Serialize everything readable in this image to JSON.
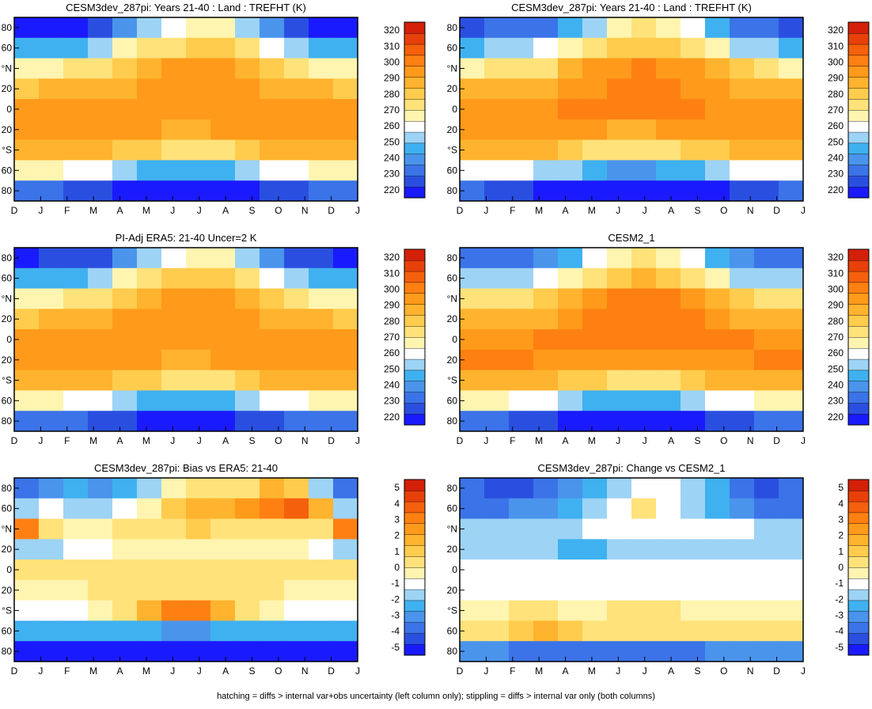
{
  "months": [
    "D",
    "J",
    "F",
    "M",
    "A",
    "M",
    "J",
    "J",
    "A",
    "S",
    "O",
    "N",
    "D",
    "J"
  ],
  "lat_labels": [
    "80",
    "60",
    "°N",
    "20",
    "0",
    "20",
    "°S",
    "60",
    "80"
  ],
  "footnote": "hatching = diffs > internal var+obs uncertainty (left column only); stippling = diffs > internal var only (both columns)",
  "chart_data": [
    {
      "type": "heatmap",
      "title": "CESM3dev_287pi: Years 21-40 : Land : TREFHT (K)",
      "x": [
        "D",
        "J",
        "F",
        "M",
        "A",
        "M",
        "J",
        "J",
        "A",
        "S",
        "O",
        "N",
        "D",
        "J"
      ],
      "y": [
        "80",
        "60",
        "°N",
        "20",
        "0",
        "20",
        "°S",
        "60",
        "80"
      ],
      "z_rows": [
        [
          224,
          225,
          226,
          230,
          240,
          252,
          262,
          268,
          266,
          255,
          240,
          230,
          226,
          224
        ],
        [
          246,
          248,
          250,
          256,
          264,
          270,
          276,
          280,
          278,
          270,
          262,
          254,
          248,
          246
        ],
        [
          266,
          268,
          270,
          274,
          280,
          286,
          290,
          292,
          290,
          286,
          280,
          274,
          268,
          266
        ],
        [
          282,
          283,
          284,
          286,
          288,
          291,
          293,
          294,
          293,
          291,
          288,
          285,
          283,
          282
        ],
        [
          292,
          292,
          292,
          293,
          294,
          294,
          294,
          294,
          294,
          294,
          293,
          293,
          292,
          292
        ],
        [
          294,
          294,
          294,
          293,
          292,
          290,
          288,
          288,
          289,
          291,
          292,
          293,
          294,
          294
        ],
        [
          288,
          288,
          287,
          285,
          282,
          278,
          274,
          274,
          276,
          280,
          284,
          287,
          288,
          288
        ],
        [
          264,
          264,
          262,
          258,
          254,
          250,
          246,
          246,
          248,
          252,
          258,
          262,
          264,
          264
        ],
        [
          236,
          234,
          232,
          228,
          225,
          223,
          222,
          222,
          223,
          225,
          228,
          232,
          234,
          236
        ]
      ],
      "colorbar": {
        "levels": [
          220,
          230,
          240,
          250,
          260,
          270,
          280,
          290,
          300,
          310,
          320
        ],
        "labels": [
          "220",
          "230",
          "240",
          "250",
          "260",
          "270",
          "280",
          "290",
          "300",
          "310",
          "320"
        ]
      }
    },
    {
      "type": "heatmap",
      "title": "CESM3dev_287pi: Years 21-40 : Land : TREFHT (K)",
      "x": [
        "D",
        "J",
        "F",
        "M",
        "A",
        "M",
        "J",
        "J",
        "A",
        "S",
        "O",
        "N",
        "D",
        "J"
      ],
      "y": [
        "80",
        "60",
        "°N",
        "20",
        "0",
        "20",
        "°S",
        "60",
        "80"
      ],
      "z_rows": [
        [
          232,
          233,
          234,
          238,
          246,
          256,
          266,
          270,
          268,
          258,
          246,
          238,
          234,
          232
        ],
        [
          250,
          252,
          254,
          258,
          266,
          272,
          278,
          282,
          280,
          272,
          264,
          256,
          252,
          250
        ],
        [
          268,
          270,
          272,
          276,
          284,
          290,
          294,
          296,
          294,
          290,
          284,
          278,
          272,
          268
        ],
        [
          284,
          284,
          285,
          287,
          290,
          294,
          296,
          297,
          296,
          294,
          290,
          287,
          285,
          284
        ],
        [
          293,
          293,
          293,
          294,
          295,
          295,
          295,
          295,
          295,
          295,
          294,
          294,
          293,
          293
        ],
        [
          294,
          294,
          294,
          293,
          292,
          290,
          288,
          288,
          289,
          291,
          292,
          293,
          294,
          294
        ],
        [
          286,
          286,
          285,
          283,
          280,
          276,
          272,
          272,
          274,
          278,
          282,
          285,
          286,
          286
        ],
        [
          262,
          262,
          260,
          256,
          252,
          248,
          244,
          244,
          246,
          250,
          256,
          260,
          262,
          262
        ],
        [
          234,
          232,
          230,
          226,
          223,
          221,
          220,
          220,
          221,
          223,
          226,
          230,
          232,
          234
        ]
      ],
      "colorbar": {
        "levels": [
          220,
          230,
          240,
          250,
          260,
          270,
          280,
          290,
          300,
          310,
          320
        ],
        "labels": [
          "220",
          "230",
          "240",
          "250",
          "260",
          "270",
          "280",
          "290",
          "300",
          "310",
          "320"
        ]
      }
    },
    {
      "type": "heatmap",
      "title": "PI-Adj ERA5: 21-40 Uncer=2 K",
      "x": [
        "D",
        "J",
        "F",
        "M",
        "A",
        "M",
        "J",
        "J",
        "A",
        "S",
        "O",
        "N",
        "D",
        "J"
      ],
      "y": [
        "80",
        "60",
        "°N",
        "20",
        "0",
        "20",
        "°S",
        "60",
        "80"
      ],
      "z_rows": [
        [
          226,
          227,
          228,
          232,
          242,
          253,
          263,
          268,
          266,
          256,
          242,
          232,
          228,
          226
        ],
        [
          247,
          249,
          251,
          257,
          265,
          271,
          277,
          280,
          278,
          270,
          262,
          254,
          249,
          247
        ],
        [
          266,
          268,
          270,
          275,
          281,
          287,
          291,
          293,
          291,
          287,
          281,
          275,
          269,
          266
        ],
        [
          282,
          283,
          284,
          286,
          289,
          292,
          294,
          294,
          293,
          291,
          288,
          285,
          283,
          282
        ],
        [
          292,
          292,
          292,
          293,
          294,
          294,
          294,
          294,
          294,
          294,
          293,
          293,
          292,
          292
        ],
        [
          294,
          294,
          294,
          293,
          292,
          290,
          288,
          288,
          289,
          291,
          292,
          293,
          294,
          294
        ],
        [
          288,
          288,
          287,
          285,
          282,
          278,
          274,
          274,
          276,
          280,
          284,
          287,
          288,
          288
        ],
        [
          265,
          265,
          263,
          259,
          255,
          251,
          248,
          248,
          250,
          254,
          259,
          263,
          265,
          265
        ],
        [
          238,
          236,
          234,
          230,
          227,
          225,
          224,
          224,
          225,
          227,
          230,
          234,
          236,
          238
        ]
      ],
      "colorbar": {
        "levels": [
          220,
          230,
          240,
          250,
          260,
          270,
          280,
          290,
          300,
          310,
          320
        ],
        "labels": [
          "220",
          "230",
          "240",
          "250",
          "260",
          "270",
          "280",
          "290",
          "300",
          "310",
          "320"
        ]
      }
    },
    {
      "type": "heatmap",
      "title": "CESM2_1",
      "x": [
        "D",
        "J",
        "F",
        "M",
        "A",
        "M",
        "J",
        "J",
        "A",
        "S",
        "O",
        "N",
        "D",
        "J"
      ],
      "y": [
        "80",
        "60",
        "°N",
        "20",
        "0",
        "20",
        "°S",
        "60",
        "80"
      ],
      "z_rows": [
        [
          236,
          237,
          238,
          241,
          249,
          258,
          267,
          271,
          269,
          260,
          249,
          241,
          237,
          236
        ],
        [
          252,
          254,
          256,
          260,
          267,
          273,
          279,
          283,
          281,
          273,
          265,
          257,
          253,
          252
        ],
        [
          270,
          272,
          274,
          277,
          285,
          291,
          295,
          297,
          295,
          291,
          285,
          279,
          273,
          270
        ],
        [
          285,
          285,
          286,
          288,
          291,
          295,
          297,
          298,
          297,
          295,
          291,
          288,
          286,
          285
        ],
        [
          294,
          294,
          294,
          295,
          296,
          296,
          296,
          296,
          296,
          296,
          295,
          295,
          294,
          294
        ],
        [
          295,
          295,
          295,
          294,
          293,
          291,
          289,
          289,
          290,
          292,
          293,
          294,
          295,
          295
        ],
        [
          287,
          287,
          286,
          284,
          281,
          277,
          273,
          273,
          275,
          279,
          283,
          286,
          287,
          287
        ],
        [
          264,
          264,
          262,
          258,
          254,
          250,
          246,
          246,
          248,
          252,
          258,
          262,
          264,
          264
        ],
        [
          236,
          234,
          232,
          228,
          225,
          223,
          222,
          222,
          223,
          225,
          228,
          232,
          234,
          236
        ]
      ],
      "colorbar": {
        "levels": [
          220,
          230,
          240,
          250,
          260,
          270,
          280,
          290,
          300,
          310,
          320
        ],
        "labels": [
          "220",
          "230",
          "240",
          "250",
          "260",
          "270",
          "280",
          "290",
          "300",
          "310",
          "320"
        ]
      }
    },
    {
      "type": "heatmap",
      "title": "CESM3dev_287pi: Bias vs ERA5: 21-40",
      "x": [
        "D",
        "J",
        "F",
        "M",
        "A",
        "M",
        "J",
        "J",
        "A",
        "S",
        "O",
        "N",
        "D",
        "J"
      ],
      "y": [
        "80",
        "60",
        "°N",
        "20",
        "0",
        "20",
        "°S",
        "60",
        "80"
      ],
      "z_rows": [
        [
          -3.5,
          -3.0,
          -2.5,
          -3.0,
          -2.5,
          -1.5,
          -0.5,
          0.5,
          0.5,
          0.0,
          1.5,
          1.0,
          -1.5,
          -3.5
        ],
        [
          -1.5,
          -1.0,
          -1.5,
          -1.5,
          -1.0,
          -0.5,
          0.8,
          1.5,
          1.8,
          2.0,
          2.5,
          3.5,
          1.5,
          -1.5
        ],
        [
          2.5,
          0.5,
          -0.5,
          -0.5,
          0.0,
          0.0,
          0.5,
          0.8,
          0.5,
          0.5,
          0.5,
          0.5,
          0.5,
          2.5
        ],
        [
          -1.5,
          -1.5,
          -1.0,
          -1.0,
          -0.5,
          -0.5,
          -0.5,
          -0.5,
          -0.5,
          -0.5,
          -0.5,
          -0.5,
          -1.0,
          -1.5
        ],
        [
          0.0,
          0.0,
          0.0,
          0.0,
          0.0,
          0.0,
          0.0,
          0.0,
          0.0,
          0.0,
          0.0,
          0.0,
          0.0,
          0.0
        ],
        [
          -0.5,
          -0.5,
          -0.5,
          0.5,
          0.5,
          0.5,
          0.5,
          0.5,
          0.5,
          0.5,
          0.0,
          -0.5,
          -0.5,
          -0.5
        ],
        [
          -1.0,
          -1.0,
          -1.0,
          -0.5,
          0.5,
          1.5,
          2.5,
          2.5,
          1.5,
          0.5,
          -0.5,
          -1.0,
          -1.0,
          -1.0
        ],
        [
          -2.0,
          -2.0,
          -2.5,
          -2.5,
          -2.5,
          -2.5,
          -3.0,
          -3.0,
          -2.5,
          -2.5,
          -2.5,
          -2.5,
          -2.0,
          -2.0
        ],
        [
          -4.5,
          -4.5,
          -5.0,
          -5.0,
          -5.0,
          -5.0,
          -5.0,
          -5.0,
          -5.0,
          -5.0,
          -4.5,
          -4.5,
          -4.5,
          -4.5
        ]
      ],
      "colorbar": {
        "levels": [
          -5,
          -4,
          -3,
          -2,
          -1,
          0,
          1,
          2,
          3,
          4,
          5
        ],
        "labels": [
          "-5",
          "-4",
          "-3",
          "-2",
          "-1",
          "0",
          "1",
          "2",
          "3",
          "4",
          "5"
        ]
      }
    },
    {
      "type": "heatmap",
      "title": "CESM3dev_287pi: Change vs CESM2_1",
      "x": [
        "D",
        "J",
        "F",
        "M",
        "A",
        "M",
        "J",
        "J",
        "A",
        "S",
        "O",
        "N",
        "D",
        "J"
      ],
      "y": [
        "80",
        "60",
        "°N",
        "20",
        "0",
        "20",
        "°S",
        "60",
        "80"
      ],
      "z_rows": [
        [
          -3.5,
          -4.0,
          -4.0,
          -3.5,
          -3.0,
          -2.0,
          -1.5,
          -1.0,
          -1.0,
          -1.5,
          -2.5,
          -3.5,
          -4.0,
          -3.5
        ],
        [
          -3.5,
          -3.5,
          -3.0,
          -3.0,
          -2.5,
          -1.5,
          -1.0,
          0.5,
          -1.0,
          -1.5,
          -2.5,
          -3.0,
          -3.5,
          -3.5
        ],
        [
          -1.5,
          -1.5,
          -1.5,
          -1.5,
          -1.5,
          -1.0,
          -1.0,
          -1.0,
          -1.0,
          -1.0,
          -1.0,
          -1.0,
          -1.5,
          -1.5
        ],
        [
          -1.5,
          -1.5,
          -1.5,
          -1.5,
          -2.0,
          -2.0,
          -1.5,
          -1.5,
          -1.5,
          -1.5,
          -1.5,
          -1.5,
          -1.5,
          -1.5
        ],
        [
          -1.0,
          -1.0,
          -1.0,
          -1.0,
          -1.0,
          -1.0,
          -1.0,
          -1.0,
          -1.0,
          -1.0,
          -1.0,
          -1.0,
          -1.0,
          -1.0
        ],
        [
          -1.0,
          -1.0,
          -1.0,
          -1.0,
          -1.0,
          -1.0,
          -1.0,
          -1.0,
          -1.0,
          -1.0,
          -1.0,
          -1.0,
          -1.0,
          -1.0
        ],
        [
          -0.5,
          -0.5,
          0.5,
          0.5,
          -0.5,
          -0.5,
          0.5,
          0.5,
          0.5,
          -0.5,
          -0.5,
          -0.5,
          -0.5,
          -0.5
        ],
        [
          0.5,
          0.5,
          1.0,
          1.5,
          1.0,
          0.5,
          0.5,
          0.5,
          0.5,
          0.5,
          0.5,
          0.5,
          0.5,
          0.5
        ],
        [
          -3.0,
          -3.0,
          -3.5,
          -3.5,
          -3.5,
          -3.5,
          -3.5,
          -3.5,
          -3.5,
          -3.5,
          -3.0,
          -3.0,
          -3.0,
          -3.0
        ]
      ],
      "colorbar": {
        "levels": [
          -5,
          -4,
          -3,
          -2,
          -1,
          0,
          1,
          2,
          3,
          4,
          5
        ],
        "labels": [
          "-5",
          "-4",
          "-3",
          "-2",
          "-1",
          "0",
          "1",
          "2",
          "3",
          "4",
          "5"
        ]
      }
    }
  ],
  "colormap": [
    "#1a1aff",
    "#2a4fe0",
    "#3b73e8",
    "#4a94ec",
    "#3fb1f0",
    "#9dd3f5",
    "#ffffff",
    "#fff5b0",
    "#ffe27a",
    "#ffcc4d",
    "#ffb32e",
    "#ff9a1a",
    "#ff8012",
    "#f4600c",
    "#e8400a",
    "#d42008"
  ]
}
